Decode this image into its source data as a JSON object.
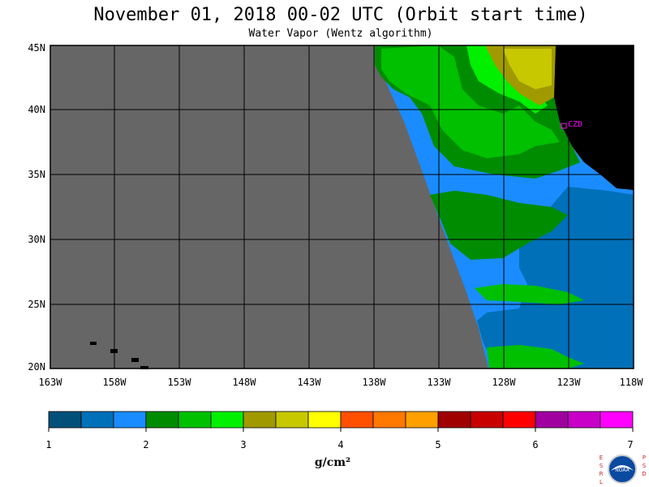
{
  "title": "November 01, 2018  00-02 UTC  (Orbit start time)",
  "subtitle": "Water Vapor (Wentz algorithm)",
  "map": {
    "lat_labels": [
      "45N",
      "40N",
      "35N",
      "30N",
      "25N",
      "20N"
    ],
    "lon_labels": [
      "163W",
      "158W",
      "153W",
      "148W",
      "143W",
      "138W",
      "133W",
      "128W",
      "123W",
      "118W"
    ],
    "station_label": "CZD",
    "colors": {
      "no_data": "#666666",
      "land": "#000000",
      "grid": "#000000",
      "station": "#ff00ff"
    }
  },
  "colorbar": {
    "colors": [
      "#00507a",
      "#0070b8",
      "#1a8cff",
      "#008c00",
      "#00c000",
      "#00f000",
      "#a09a00",
      "#c8c800",
      "#ffff00",
      "#ff5000",
      "#ff7800",
      "#ffa000",
      "#a00000",
      "#c80000",
      "#ff0000",
      "#a000a0",
      "#c800c8",
      "#ff00ff"
    ],
    "tick_labels": [
      "1",
      "2",
      "3",
      "4",
      "5",
      "6",
      "7"
    ],
    "units": "g/cm²"
  },
  "logo": {
    "left_letters": [
      "E",
      "S",
      "R",
      "L"
    ],
    "right_letters": [
      "P",
      "S",
      "D"
    ],
    "center": "NOAA"
  }
}
